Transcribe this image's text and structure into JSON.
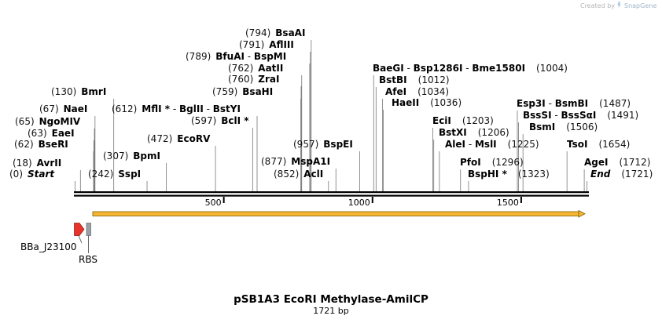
{
  "credit": {
    "prefix": "Created by",
    "brand": "SnapGene"
  },
  "map": {
    "title": "pSB1A3 EcoRI Methylase-AmilCP",
    "length_label": "1721 bp",
    "total_bp": 1721,
    "ticks": [
      {
        "bp": 500,
        "label": "500"
      },
      {
        "bp": 1000,
        "label": "1000"
      },
      {
        "bp": 1500,
        "label": "1500"
      }
    ],
    "sites": [
      {
        "id": "start",
        "segs": [
          {
            "t": "(0)"
          },
          {
            "t": "Start",
            "c": "nm it"
          }
        ],
        "bp": 0
      },
      {
        "id": "avrii",
        "segs": [
          {
            "t": "(18)"
          },
          {
            "t": "AvrII",
            "c": "nm"
          }
        ],
        "bp": 18
      },
      {
        "id": "bseri",
        "segs": [
          {
            "t": "(62)"
          },
          {
            "t": "BseRI",
            "c": "nm"
          }
        ],
        "bp": 62
      },
      {
        "id": "eaei",
        "segs": [
          {
            "t": "(63)"
          },
          {
            "t": "EaeI",
            "c": "nm"
          }
        ],
        "bp": 63
      },
      {
        "id": "ngomiv",
        "segs": [
          {
            "t": "(65)"
          },
          {
            "t": "NgoMIV",
            "c": "nm"
          }
        ],
        "bp": 65
      },
      {
        "id": "naei",
        "segs": [
          {
            "t": "(67)"
          },
          {
            "t": "NaeI",
            "c": "nm"
          }
        ],
        "bp": 67
      },
      {
        "id": "bmri",
        "segs": [
          {
            "t": "(130)"
          },
          {
            "t": "BmrI",
            "c": "nm"
          }
        ],
        "bp": 130
      },
      {
        "id": "sspi",
        "segs": [
          {
            "t": "(242)"
          },
          {
            "t": "SspI",
            "c": "nm"
          }
        ],
        "bp": 242
      },
      {
        "id": "bpmi",
        "segs": [
          {
            "t": "(307)"
          },
          {
            "t": "BpmI",
            "c": "nm"
          }
        ],
        "bp": 307
      },
      {
        "id": "ecorv",
        "segs": [
          {
            "t": "(472)"
          },
          {
            "t": "EcoRV",
            "c": "nm"
          }
        ],
        "bp": 472
      },
      {
        "id": "bcli",
        "segs": [
          {
            "t": "(597)"
          },
          {
            "t": "BclI *",
            "c": "nm"
          }
        ],
        "bp": 597
      },
      {
        "id": "mfli",
        "segs": [
          {
            "t": "(612)"
          },
          {
            "t": "MflI *",
            "c": "nm"
          },
          {
            "t": " - "
          },
          {
            "t": "BglII",
            "c": "nm"
          },
          {
            "t": " - "
          },
          {
            "t": "BstYI",
            "c": "nm"
          }
        ],
        "bp": 612
      },
      {
        "id": "bfuai",
        "segs": [
          {
            "t": "(789)"
          },
          {
            "t": "BfuAI",
            "c": "nm"
          },
          {
            "t": " - "
          },
          {
            "t": "BspMI",
            "c": "nm"
          }
        ],
        "bp": 789
      },
      {
        "id": "aflii",
        "segs": [
          {
            "t": "(791)"
          },
          {
            "t": "AflIII",
            "c": "nm"
          }
        ],
        "bp": 791
      },
      {
        "id": "bsaai",
        "segs": [
          {
            "t": "(794)"
          },
          {
            "t": "BsaAI",
            "c": "nm"
          }
        ],
        "bp": 794
      },
      {
        "id": "aatii",
        "segs": [
          {
            "t": "(762)"
          },
          {
            "t": "AatII",
            "c": "nm"
          }
        ],
        "bp": 762
      },
      {
        "id": "zrai",
        "segs": [
          {
            "t": "(760)"
          },
          {
            "t": "ZraI",
            "c": "nm"
          }
        ],
        "bp": 760
      },
      {
        "id": "bsahi",
        "segs": [
          {
            "t": "(759)"
          },
          {
            "t": "BsaHI",
            "c": "nm"
          }
        ],
        "bp": 759
      },
      {
        "id": "bspei",
        "segs": [
          {
            "t": "(957)"
          },
          {
            "t": "BspEI",
            "c": "nm"
          }
        ],
        "bp": 957
      },
      {
        "id": "mspa1i",
        "segs": [
          {
            "t": "(877)"
          },
          {
            "t": "MspA1I",
            "c": "nm"
          }
        ],
        "bp": 877
      },
      {
        "id": "acli",
        "segs": [
          {
            "t": "(852)"
          },
          {
            "t": "AclI",
            "c": "nm"
          }
        ],
        "bp": 852
      },
      {
        "id": "baegi",
        "segs": [
          {
            "t": "BaeGI",
            "c": "nm"
          },
          {
            "t": " - "
          },
          {
            "t": "Bsp1286I",
            "c": "nm"
          },
          {
            "t": " - "
          },
          {
            "t": "Bme1580I",
            "c": "nm"
          },
          {
            "t": "(1004)"
          }
        ],
        "bp": 1004
      },
      {
        "id": "bstbi",
        "segs": [
          {
            "t": "BstBI",
            "c": "nm"
          },
          {
            "t": "(1012)"
          }
        ],
        "bp": 1012
      },
      {
        "id": "afei",
        "segs": [
          {
            "t": "AfeI",
            "c": "nm"
          },
          {
            "t": "(1034)"
          }
        ],
        "bp": 1034
      },
      {
        "id": "haeii",
        "segs": [
          {
            "t": "HaeII",
            "c": "nm"
          },
          {
            "t": "(1036)"
          }
        ],
        "bp": 1036
      },
      {
        "id": "ecii",
        "segs": [
          {
            "t": "EciI",
            "c": "nm"
          },
          {
            "t": "(1203)"
          }
        ],
        "bp": 1203
      },
      {
        "id": "bstxi",
        "segs": [
          {
            "t": "BstXI",
            "c": "nm"
          },
          {
            "t": "(1206)"
          }
        ],
        "bp": 1206
      },
      {
        "id": "alei",
        "segs": [
          {
            "t": "AleI",
            "c": "nm"
          },
          {
            "t": " - "
          },
          {
            "t": "MslI",
            "c": "nm"
          },
          {
            "t": "(1225)"
          }
        ],
        "bp": 1225
      },
      {
        "id": "pfoi",
        "segs": [
          {
            "t": "PfoI",
            "c": "nm"
          },
          {
            "t": "(1296)"
          }
        ],
        "bp": 1296
      },
      {
        "id": "bsphi",
        "segs": [
          {
            "t": "BspHI *",
            "c": "nm"
          },
          {
            "t": "(1323)"
          }
        ],
        "bp": 1323
      },
      {
        "id": "esp3i",
        "segs": [
          {
            "t": "Esp3I",
            "c": "nm"
          },
          {
            "t": " - "
          },
          {
            "t": "BsmBI",
            "c": "nm"
          },
          {
            "t": "(1487)"
          }
        ],
        "bp": 1487
      },
      {
        "id": "bsssi",
        "segs": [
          {
            "t": "BssSI",
            "c": "nm"
          },
          {
            "t": " - "
          },
          {
            "t": "BssSαI",
            "c": "nm"
          },
          {
            "t": "(1491)"
          }
        ],
        "bp": 1491
      },
      {
        "id": "bsmi",
        "segs": [
          {
            "t": "BsmI",
            "c": "nm"
          },
          {
            "t": "(1506)"
          }
        ],
        "bp": 1506
      },
      {
        "id": "tsoi",
        "segs": [
          {
            "t": "TsoI",
            "c": "nm"
          },
          {
            "t": "(1654)"
          }
        ],
        "bp": 1654
      },
      {
        "id": "agei",
        "segs": [
          {
            "t": "AgeI",
            "c": "nm"
          },
          {
            "t": "(1712)"
          }
        ],
        "bp": 1712
      },
      {
        "id": "end",
        "segs": [
          {
            "t": "End",
            "c": "nm it"
          },
          {
            "t": "(1721)"
          }
        ],
        "bp": 1721
      }
    ],
    "features": [
      {
        "id": "bba-j23100",
        "name": "BBa_J23100",
        "type": "promoter",
        "color": "#e8332b"
      },
      {
        "id": "rbs",
        "name": "RBS",
        "type": "rbs",
        "color": "#9aa0a8"
      },
      {
        "id": "orf",
        "name": "",
        "type": "orf",
        "color": "#f5b731"
      }
    ]
  }
}
